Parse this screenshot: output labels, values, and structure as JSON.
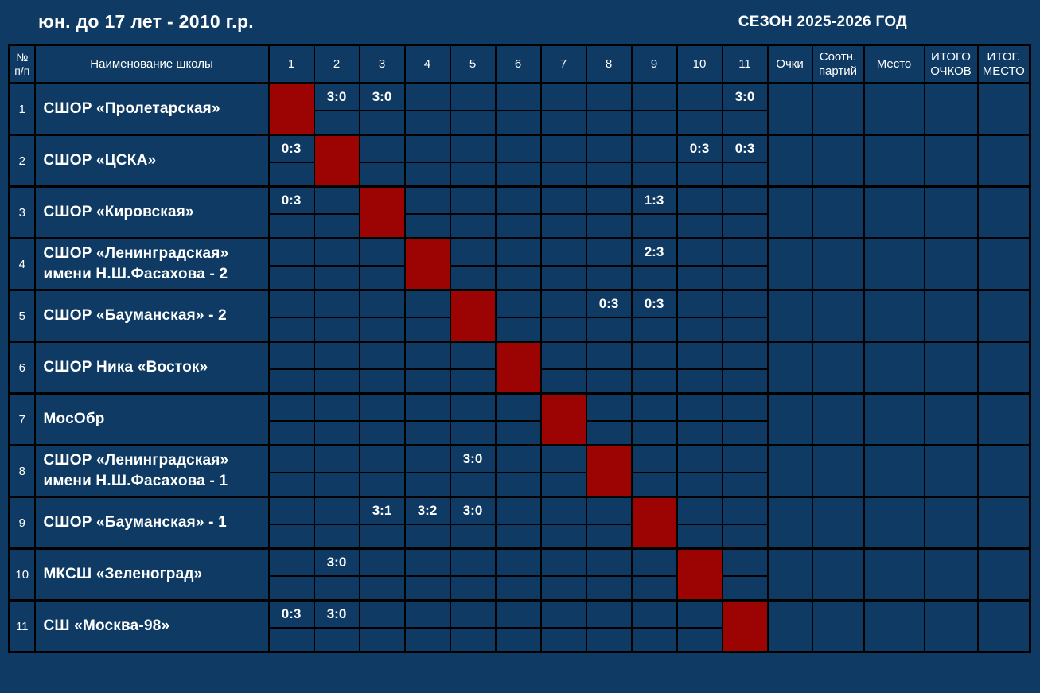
{
  "page": {
    "title_left": "юн. до 17 лет - 2010 г.р.",
    "title_right": "СЕЗОН 2025-2026 ГОД"
  },
  "colors": {
    "background": "#0e3a63",
    "grid": "#000000",
    "diagonal_cell": "#9c0303",
    "text": "#ffffff"
  },
  "table": {
    "headers": {
      "num": "№\nп/п",
      "school": "Наименование школы",
      "rounds": [
        "1",
        "2",
        "3",
        "4",
        "5",
        "6",
        "7",
        "8",
        "9",
        "10",
        "11"
      ],
      "points": "Очки",
      "sets_ratio": "Соотн.\nпартий",
      "place": "Место",
      "total_points": "ИТОГО\nОЧКОВ",
      "final_place": "ИТОГ.\nМЕСТО"
    },
    "rows": [
      {
        "num": "1",
        "name": "СШОР «Пролетарская»",
        "scores": [
          "",
          "3:0",
          "3:0",
          "",
          "",
          "",
          "",
          "",
          "",
          "",
          "3:0"
        ],
        "points": "",
        "sets_ratio": "",
        "place": "",
        "total_points": "",
        "final_place": ""
      },
      {
        "num": "2",
        "name": "СШОР «ЦСКА»",
        "scores": [
          "0:3",
          "",
          "",
          "",
          "",
          "",
          "",
          "",
          "",
          "0:3",
          "0:3"
        ],
        "points": "",
        "sets_ratio": "",
        "place": "",
        "total_points": "",
        "final_place": ""
      },
      {
        "num": "3",
        "name": "СШОР «Кировская»",
        "scores": [
          "0:3",
          "",
          "",
          "",
          "",
          "",
          "",
          "",
          "1:3",
          "",
          ""
        ],
        "points": "",
        "sets_ratio": "",
        "place": "",
        "total_points": "",
        "final_place": ""
      },
      {
        "num": "4",
        "name": "СШОР «Ленинградская» имени Н.Ш.Фасахова - 2",
        "scores": [
          "",
          "",
          "",
          "",
          "",
          "",
          "",
          "",
          "2:3",
          "",
          ""
        ],
        "points": "",
        "sets_ratio": "",
        "place": "",
        "total_points": "",
        "final_place": ""
      },
      {
        "num": "5",
        "name": "СШОР «Бауманская» - 2",
        "scores": [
          "",
          "",
          "",
          "",
          "",
          "",
          "",
          "0:3",
          "0:3",
          "",
          ""
        ],
        "points": "",
        "sets_ratio": "",
        "place": "",
        "total_points": "",
        "final_place": ""
      },
      {
        "num": "6",
        "name": "СШОР Ника «Восток»",
        "scores": [
          "",
          "",
          "",
          "",
          "",
          "",
          "",
          "",
          "",
          "",
          ""
        ],
        "points": "",
        "sets_ratio": "",
        "place": "",
        "total_points": "",
        "final_place": ""
      },
      {
        "num": "7",
        "name": "МосОбр",
        "scores": [
          "",
          "",
          "",
          "",
          "",
          "",
          "",
          "",
          "",
          "",
          ""
        ],
        "points": "",
        "sets_ratio": "",
        "place": "",
        "total_points": "",
        "final_place": ""
      },
      {
        "num": "8",
        "name": "СШОР «Ленинградская» имени Н.Ш.Фасахова - 1",
        "scores": [
          "",
          "",
          "",
          "",
          "3:0",
          "",
          "",
          "",
          "",
          "",
          ""
        ],
        "points": "",
        "sets_ratio": "",
        "place": "",
        "total_points": "",
        "final_place": ""
      },
      {
        "num": "9",
        "name": "СШОР «Бауманская» - 1",
        "scores": [
          "",
          "",
          "3:1",
          "3:2",
          "3:0",
          "",
          "",
          "",
          "",
          "",
          ""
        ],
        "points": "",
        "sets_ratio": "",
        "place": "",
        "total_points": "",
        "final_place": ""
      },
      {
        "num": "10",
        "name": "МКСШ «Зеленоград»",
        "scores": [
          "",
          "3:0",
          "",
          "",
          "",
          "",
          "",
          "",
          "",
          "",
          ""
        ],
        "points": "",
        "sets_ratio": "",
        "place": "",
        "total_points": "",
        "final_place": ""
      },
      {
        "num": "11",
        "name": "СШ «Москва-98»",
        "scores": [
          "0:3",
          "3:0",
          "",
          "",
          "",
          "",
          "",
          "",
          "",
          "",
          ""
        ],
        "points": "",
        "sets_ratio": "",
        "place": "",
        "total_points": "",
        "final_place": ""
      }
    ]
  }
}
